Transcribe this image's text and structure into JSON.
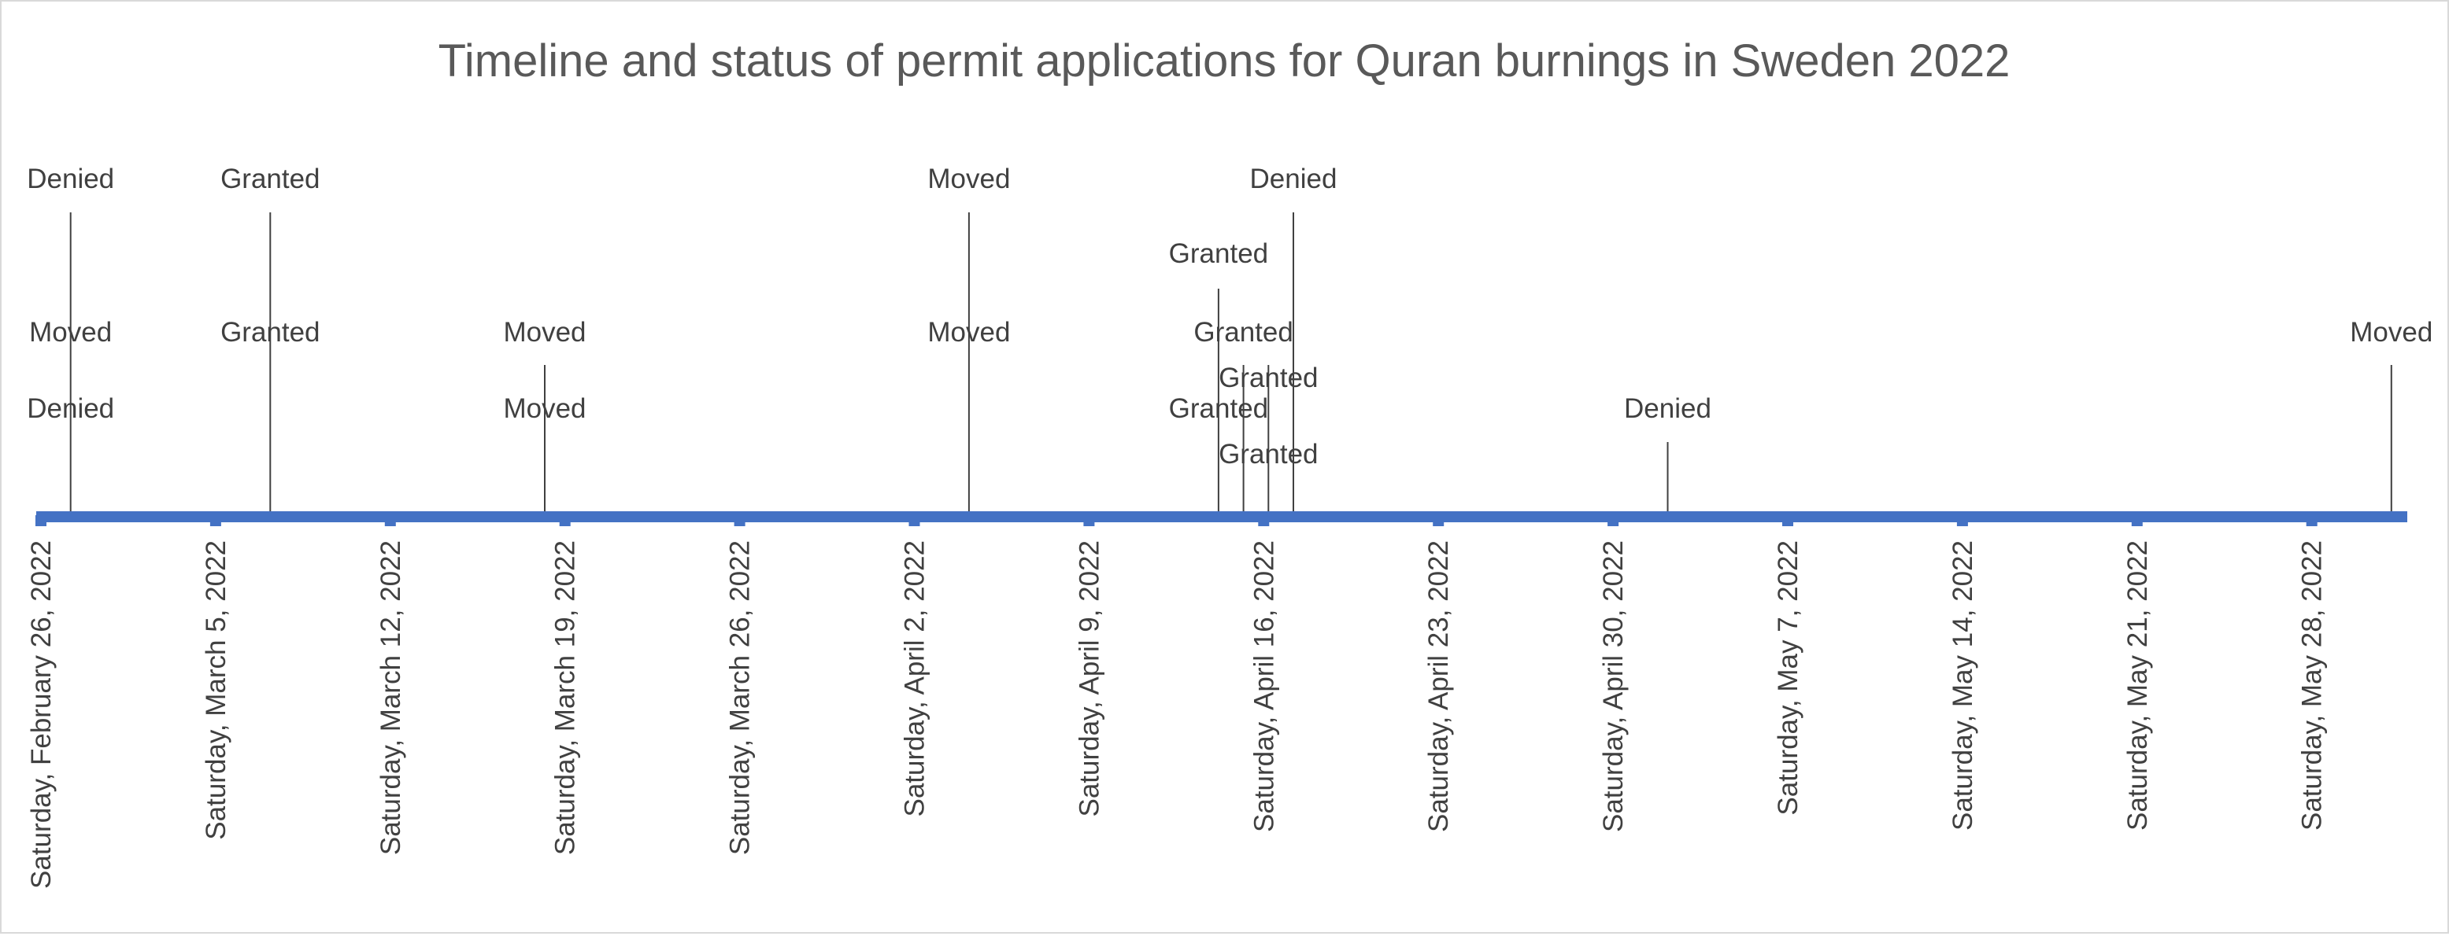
{
  "chart_data": {
    "type": "timeline",
    "title": "Timeline and status of permit applications for Quran burnings in Sweden 2022",
    "colors": {
      "axis": "#4472C4",
      "stem": "#404040",
      "text": "#404040",
      "title": "#595959"
    },
    "x_ticks": [
      "Saturday, February 26, 2022",
      "Saturday, March 5, 2022",
      "Saturday, March 12, 2022",
      "Saturday, March 19, 2022",
      "Saturday, March 26, 2022",
      "Saturday, April 2, 2022",
      "Saturday, April 9, 2022",
      "Saturday, April 16, 2022",
      "Saturday, April 23, 2022",
      "Saturday, April 30, 2022",
      "Saturday, May 7, 2022",
      "Saturday, May 14, 2022",
      "Saturday, May 21, 2022",
      "Saturday, May 28, 2022"
    ],
    "x_range": [
      "2022-02-26",
      "2022-06-01"
    ],
    "events": [
      {
        "date": "2022-02-27",
        "label": "Denied"
      },
      {
        "date": "2022-02-27",
        "label": "Moved"
      },
      {
        "date": "2022-02-27",
        "label": "Denied"
      },
      {
        "date": "2022-03-07",
        "label": "Granted"
      },
      {
        "date": "2022-03-07",
        "label": "Granted"
      },
      {
        "date": "2022-03-18",
        "label": "Moved"
      },
      {
        "date": "2022-03-18",
        "label": "Moved"
      },
      {
        "date": "2022-04-04",
        "label": "Moved"
      },
      {
        "date": "2022-04-04",
        "label": "Moved"
      },
      {
        "date": "2022-04-14",
        "label": "Granted"
      },
      {
        "date": "2022-04-14",
        "label": "Granted"
      },
      {
        "date": "2022-04-15",
        "label": "Granted"
      },
      {
        "date": "2022-04-16",
        "label": "Granted"
      },
      {
        "date": "2022-04-16",
        "label": "Granted"
      },
      {
        "date": "2022-04-17",
        "label": "Denied"
      },
      {
        "date": "2022-05-02",
        "label": "Denied"
      },
      {
        "date": "2022-05-31",
        "label": "Moved"
      }
    ]
  }
}
